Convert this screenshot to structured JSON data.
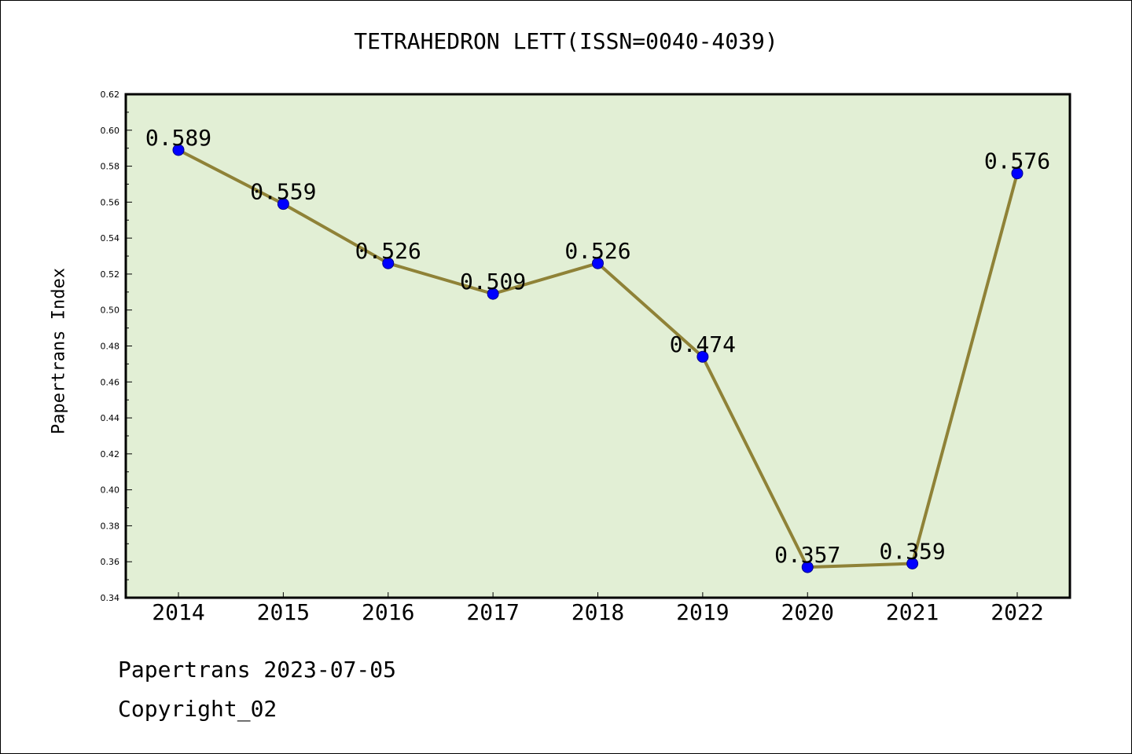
{
  "chart_data": {
    "type": "line",
    "title": "TETRAHEDRON LETT(ISSN=0040-4039)",
    "xlabel": "",
    "ylabel": "Papertrans Index",
    "categories": [
      "2014",
      "2015",
      "2016",
      "2017",
      "2018",
      "2019",
      "2020",
      "2021",
      "2022"
    ],
    "series": [
      {
        "values": [
          0.589,
          0.559,
          0.526,
          0.509,
          0.526,
          0.474,
          0.357,
          0.359,
          0.576
        ]
      }
    ],
    "data_labels": [
      "0.589",
      "0.559",
      "0.526",
      "0.509",
      "0.526",
      "0.474",
      "0.357",
      "0.359",
      "0.576"
    ],
    "ylim": [
      0.34,
      0.62
    ],
    "yticks": [
      "0.34",
      "0.36",
      "0.38",
      "0.40",
      "0.42",
      "0.44",
      "0.46",
      "0.48",
      "0.50",
      "0.52",
      "0.54",
      "0.56",
      "0.58",
      "0.60",
      "0.62"
    ],
    "grid": false,
    "legend": "none",
    "colors": {
      "plot_background": "#e2efd5",
      "line": "#8f8237",
      "marker": "#0000ff",
      "marker_edge": "#00008b"
    }
  },
  "footer": {
    "date_line": "Papertrans 2023-07-05",
    "copyright": "Copyright_02"
  }
}
